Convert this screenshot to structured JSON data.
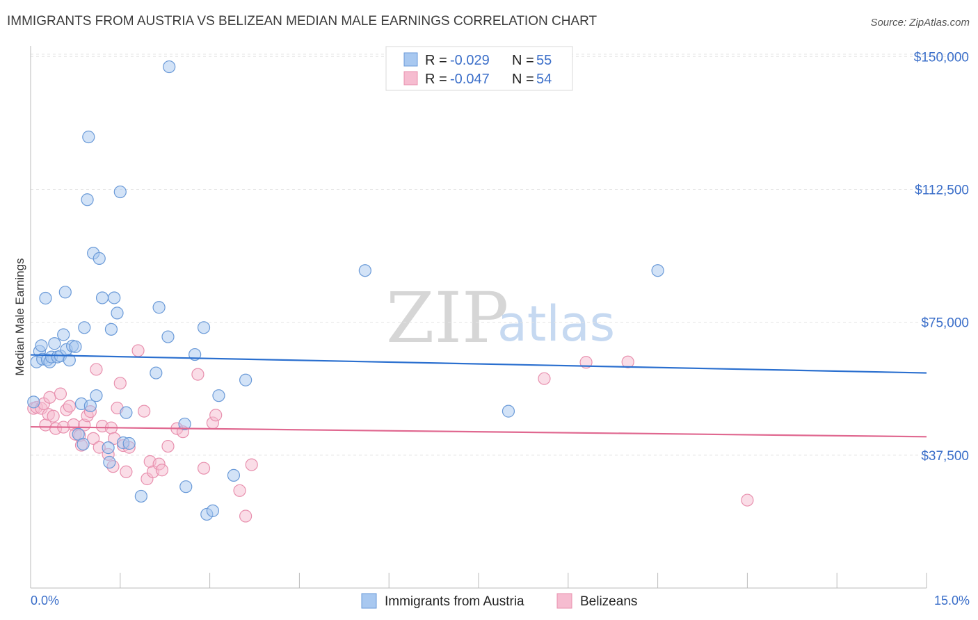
{
  "title": "IMMIGRANTS FROM AUSTRIA VS BELIZEAN MEDIAN MALE EARNINGS CORRELATION CHART",
  "source": "Source: ZipAtlas.com",
  "watermark": {
    "zip": "ZIP",
    "atlas": "atlas"
  },
  "colors": {
    "austria_fill": "#a8c8f0",
    "austria_stroke": "#6a9ad8",
    "austria_line": "#2a6fcf",
    "belize_fill": "#f6bcd0",
    "belize_stroke": "#e890ae",
    "belize_line": "#e06890",
    "axis_text": "#3a6ec9",
    "grid": "#e4e4e4"
  },
  "legend": {
    "rows": [
      {
        "r_label": "R = ",
        "r_value": "-0.029",
        "n_label": "N = ",
        "n_value": "55"
      },
      {
        "r_label": "R = ",
        "r_value": "-0.047",
        "n_label": "N = ",
        "n_value": "54"
      }
    ]
  },
  "chart_data": {
    "type": "scatter",
    "title": "IMMIGRANTS FROM AUSTRIA VS BELIZEAN MEDIAN MALE EARNINGS CORRELATION CHART",
    "xlabel": "",
    "ylabel": "Median Male Earnings",
    "xlim": [
      0,
      15
    ],
    "ylim": [
      0,
      153000
    ],
    "x_tick_labels": [
      "0.0%",
      "15.0%"
    ],
    "y_ticks": [
      37500,
      75000,
      112500,
      150000
    ],
    "y_tick_labels": [
      "$37,500",
      "$75,000",
      "$112,500",
      "$150,000"
    ],
    "grid": true,
    "legend_position": "top-center",
    "series": [
      {
        "name": "Immigrants from Austria",
        "r": -0.029,
        "n": 55,
        "trend": {
          "x0": 0.0,
          "y0": 65800,
          "x1": 15.0,
          "y1": 60700
        },
        "points": [
          [
            0.05,
            52500
          ],
          [
            0.1,
            63800
          ],
          [
            0.15,
            66800
          ],
          [
            0.18,
            68400
          ],
          [
            0.2,
            64600
          ],
          [
            0.25,
            81800
          ],
          [
            0.28,
            64400
          ],
          [
            0.32,
            63800
          ],
          [
            0.35,
            65200
          ],
          [
            0.4,
            69000
          ],
          [
            0.45,
            65200
          ],
          [
            0.5,
            65500
          ],
          [
            0.55,
            71500
          ],
          [
            0.58,
            83500
          ],
          [
            0.6,
            67300
          ],
          [
            0.65,
            64300
          ],
          [
            0.7,
            68300
          ],
          [
            0.75,
            68100
          ],
          [
            0.8,
            43400
          ],
          [
            0.85,
            52000
          ],
          [
            0.88,
            40600
          ],
          [
            0.9,
            73500
          ],
          [
            0.95,
            109600
          ],
          [
            0.97,
            127300
          ],
          [
            1.0,
            51400
          ],
          [
            1.05,
            94500
          ],
          [
            1.1,
            54300
          ],
          [
            1.15,
            93000
          ],
          [
            1.2,
            81900
          ],
          [
            1.3,
            39600
          ],
          [
            1.32,
            35500
          ],
          [
            1.35,
            73000
          ],
          [
            1.4,
            81900
          ],
          [
            1.45,
            77600
          ],
          [
            1.5,
            111800
          ],
          [
            1.55,
            41000
          ],
          [
            1.6,
            49500
          ],
          [
            1.65,
            40800
          ],
          [
            1.85,
            25900
          ],
          [
            2.1,
            60700
          ],
          [
            2.15,
            79200
          ],
          [
            2.3,
            70900
          ],
          [
            2.32,
            147100
          ],
          [
            2.58,
            46300
          ],
          [
            2.6,
            28600
          ],
          [
            2.75,
            65900
          ],
          [
            2.9,
            73500
          ],
          [
            2.95,
            20800
          ],
          [
            3.05,
            21800
          ],
          [
            3.15,
            54300
          ],
          [
            3.4,
            31800
          ],
          [
            3.6,
            58700
          ],
          [
            5.6,
            89600
          ],
          [
            8.0,
            49900
          ],
          [
            10.5,
            89600
          ]
        ]
      },
      {
        "name": "Belizeans",
        "r": -0.047,
        "n": 54,
        "trend": {
          "x0": 0.0,
          "y0": 45500,
          "x1": 15.0,
          "y1": 42700
        },
        "points": [
          [
            0.05,
            50700
          ],
          [
            0.1,
            51000
          ],
          [
            0.18,
            50700
          ],
          [
            0.22,
            52000
          ],
          [
            0.25,
            46000
          ],
          [
            0.3,
            49000
          ],
          [
            0.32,
            53800
          ],
          [
            0.38,
            48500
          ],
          [
            0.42,
            45000
          ],
          [
            0.5,
            54800
          ],
          [
            0.55,
            45400
          ],
          [
            0.6,
            50300
          ],
          [
            0.65,
            51300
          ],
          [
            0.72,
            46100
          ],
          [
            0.75,
            43400
          ],
          [
            0.82,
            43000
          ],
          [
            0.85,
            40300
          ],
          [
            0.9,
            46000
          ],
          [
            0.95,
            48600
          ],
          [
            1.0,
            49800
          ],
          [
            1.05,
            42200
          ],
          [
            1.1,
            61700
          ],
          [
            1.15,
            39700
          ],
          [
            1.2,
            45700
          ],
          [
            1.3,
            37700
          ],
          [
            1.35,
            45200
          ],
          [
            1.38,
            34300
          ],
          [
            1.4,
            42200
          ],
          [
            1.45,
            50800
          ],
          [
            1.5,
            57800
          ],
          [
            1.55,
            40200
          ],
          [
            1.6,
            32800
          ],
          [
            1.65,
            39700
          ],
          [
            1.8,
            67000
          ],
          [
            1.9,
            49900
          ],
          [
            1.95,
            30800
          ],
          [
            2.0,
            35700
          ],
          [
            2.05,
            32800
          ],
          [
            2.15,
            35000
          ],
          [
            2.2,
            33300
          ],
          [
            2.3,
            40000
          ],
          [
            2.45,
            45000
          ],
          [
            2.55,
            44100
          ],
          [
            2.8,
            60300
          ],
          [
            2.9,
            33800
          ],
          [
            3.05,
            46600
          ],
          [
            3.1,
            48800
          ],
          [
            3.5,
            27500
          ],
          [
            3.6,
            20300
          ],
          [
            3.7,
            34800
          ],
          [
            8.6,
            59100
          ],
          [
            9.3,
            63700
          ],
          [
            10.0,
            63800
          ],
          [
            12.0,
            24800
          ]
        ]
      }
    ]
  }
}
